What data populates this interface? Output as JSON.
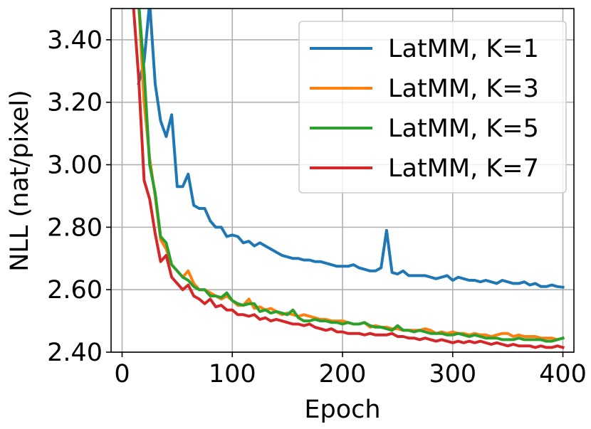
{
  "chart_data": {
    "type": "line",
    "title": "",
    "xlabel": "Epoch",
    "ylabel": "NLL (nat/pixel)",
    "xlim": [
      -10,
      410
    ],
    "ylim": [
      2.4,
      3.5
    ],
    "xticks": [
      0,
      100,
      200,
      300,
      400
    ],
    "xtick_labels": [
      "0",
      "100",
      "200",
      "300",
      "400"
    ],
    "yticks": [
      2.4,
      2.6,
      2.8,
      3.0,
      3.2,
      3.4
    ],
    "ytick_labels": [
      "2.40",
      "2.60",
      "2.80",
      "3.00",
      "3.20",
      "3.40"
    ],
    "grid": true,
    "legend_position": "top-right",
    "series": [
      {
        "name": "LatMM, K=1",
        "color": "#1f77b4",
        "x": [
          15,
          20,
          25,
          30,
          35,
          40,
          45,
          50,
          55,
          60,
          65,
          70,
          75,
          80,
          85,
          90,
          95,
          100,
          105,
          110,
          115,
          120,
          125,
          130,
          135,
          140,
          145,
          150,
          155,
          160,
          165,
          170,
          175,
          180,
          185,
          190,
          195,
          200,
          205,
          210,
          215,
          220,
          225,
          230,
          235,
          240,
          245,
          250,
          255,
          260,
          265,
          270,
          275,
          280,
          285,
          290,
          295,
          300,
          305,
          310,
          315,
          320,
          325,
          330,
          335,
          340,
          345,
          350,
          355,
          360,
          365,
          370,
          375,
          380,
          385,
          390,
          395,
          400
        ],
        "y": [
          3.26,
          3.33,
          3.52,
          3.26,
          3.14,
          3.09,
          3.16,
          2.93,
          2.93,
          2.97,
          2.87,
          2.86,
          2.86,
          2.82,
          2.8,
          2.8,
          2.77,
          2.775,
          2.77,
          2.75,
          2.755,
          2.74,
          2.75,
          2.74,
          2.73,
          2.72,
          2.71,
          2.705,
          2.7,
          2.7,
          2.695,
          2.695,
          2.69,
          2.69,
          2.685,
          2.68,
          2.675,
          2.675,
          2.675,
          2.68,
          2.67,
          2.665,
          2.66,
          2.66,
          2.67,
          2.79,
          2.655,
          2.65,
          2.66,
          2.645,
          2.645,
          2.645,
          2.645,
          2.64,
          2.635,
          2.64,
          2.645,
          2.63,
          2.64,
          2.635,
          2.63,
          2.63,
          2.625,
          2.63,
          2.625,
          2.62,
          2.63,
          2.625,
          2.62,
          2.62,
          2.625,
          2.615,
          2.62,
          2.61,
          2.61,
          2.615,
          2.61,
          2.608
        ]
      },
      {
        "name": "LatMM, K=3",
        "color": "#ff7f0e",
        "x": [
          15,
          20,
          25,
          30,
          35,
          40,
          45,
          50,
          55,
          60,
          65,
          70,
          75,
          80,
          85,
          90,
          95,
          100,
          105,
          110,
          115,
          120,
          125,
          130,
          135,
          140,
          145,
          150,
          155,
          160,
          165,
          170,
          175,
          180,
          185,
          190,
          195,
          200,
          205,
          210,
          215,
          220,
          225,
          230,
          235,
          240,
          245,
          250,
          255,
          260,
          265,
          270,
          275,
          280,
          285,
          290,
          295,
          300,
          305,
          310,
          315,
          320,
          325,
          330,
          335,
          340,
          345,
          350,
          355,
          360,
          365,
          370,
          375,
          380,
          385,
          390,
          395,
          400
        ],
        "y": [
          3.52,
          3.2,
          3.02,
          2.9,
          2.76,
          2.73,
          2.68,
          2.66,
          2.64,
          2.66,
          2.62,
          2.6,
          2.6,
          2.59,
          2.58,
          2.57,
          2.58,
          2.565,
          2.55,
          2.55,
          2.57,
          2.54,
          2.545,
          2.535,
          2.54,
          2.53,
          2.52,
          2.525,
          2.52,
          2.515,
          2.52,
          2.515,
          2.51,
          2.505,
          2.505,
          2.5,
          2.5,
          2.5,
          2.495,
          2.49,
          2.49,
          2.495,
          2.48,
          2.485,
          2.48,
          2.48,
          2.475,
          2.475,
          2.47,
          2.47,
          2.47,
          2.47,
          2.475,
          2.47,
          2.46,
          2.465,
          2.46,
          2.465,
          2.46,
          2.46,
          2.455,
          2.46,
          2.455,
          2.455,
          2.45,
          2.455,
          2.46,
          2.46,
          2.45,
          2.455,
          2.45,
          2.45,
          2.45,
          2.445,
          2.445,
          2.445,
          2.44,
          2.445
        ]
      },
      {
        "name": "LatMM, K=5",
        "color": "#2ca02c",
        "x": [
          15,
          20,
          25,
          30,
          35,
          40,
          45,
          50,
          55,
          60,
          65,
          70,
          75,
          80,
          85,
          90,
          95,
          100,
          105,
          110,
          115,
          120,
          125,
          130,
          135,
          140,
          145,
          150,
          155,
          160,
          165,
          170,
          175,
          180,
          185,
          190,
          195,
          200,
          205,
          210,
          215,
          220,
          225,
          230,
          235,
          240,
          245,
          250,
          255,
          260,
          265,
          270,
          275,
          280,
          285,
          290,
          295,
          300,
          305,
          310,
          315,
          320,
          325,
          330,
          335,
          340,
          345,
          350,
          355,
          360,
          365,
          370,
          375,
          380,
          385,
          390,
          395,
          400
        ],
        "y": [
          3.52,
          3.3,
          3.0,
          2.91,
          2.77,
          2.75,
          2.68,
          2.66,
          2.64,
          2.63,
          2.61,
          2.6,
          2.6,
          2.58,
          2.58,
          2.575,
          2.59,
          2.565,
          2.555,
          2.55,
          2.555,
          2.555,
          2.53,
          2.535,
          2.525,
          2.53,
          2.525,
          2.52,
          2.535,
          2.51,
          2.5,
          2.5,
          2.505,
          2.5,
          2.5,
          2.495,
          2.495,
          2.49,
          2.495,
          2.49,
          2.49,
          2.495,
          2.485,
          2.48,
          2.48,
          2.475,
          2.47,
          2.485,
          2.47,
          2.47,
          2.465,
          2.47,
          2.465,
          2.46,
          2.46,
          2.46,
          2.455,
          2.455,
          2.46,
          2.455,
          2.45,
          2.455,
          2.45,
          2.445,
          2.445,
          2.445,
          2.44,
          2.44,
          2.44,
          2.445,
          2.44,
          2.44,
          2.44,
          2.44,
          2.435,
          2.435,
          2.44,
          2.445
        ]
      },
      {
        "name": "LatMM, K=7",
        "color": "#d62728",
        "x": [
          10,
          15,
          20,
          25,
          30,
          35,
          40,
          45,
          50,
          55,
          60,
          65,
          70,
          75,
          80,
          85,
          90,
          95,
          100,
          105,
          110,
          115,
          120,
          125,
          130,
          135,
          140,
          145,
          150,
          155,
          160,
          165,
          170,
          175,
          180,
          185,
          190,
          195,
          200,
          205,
          210,
          215,
          220,
          225,
          230,
          235,
          240,
          245,
          250,
          255,
          260,
          265,
          270,
          275,
          280,
          285,
          290,
          295,
          300,
          305,
          310,
          315,
          320,
          325,
          330,
          335,
          340,
          345,
          350,
          355,
          360,
          365,
          370,
          375,
          380,
          385,
          390,
          395,
          400
        ],
        "y": [
          3.52,
          3.28,
          2.95,
          2.89,
          2.78,
          2.69,
          2.71,
          2.64,
          2.62,
          2.6,
          2.615,
          2.58,
          2.57,
          2.555,
          2.57,
          2.545,
          2.55,
          2.535,
          2.535,
          2.52,
          2.52,
          2.515,
          2.52,
          2.505,
          2.51,
          2.5,
          2.505,
          2.5,
          2.495,
          2.49,
          2.49,
          2.485,
          2.49,
          2.48,
          2.475,
          2.47,
          2.475,
          2.465,
          2.465,
          2.46,
          2.46,
          2.46,
          2.455,
          2.46,
          2.455,
          2.455,
          2.455,
          2.46,
          2.45,
          2.45,
          2.445,
          2.445,
          2.44,
          2.445,
          2.44,
          2.435,
          2.44,
          2.435,
          2.43,
          2.435,
          2.43,
          2.435,
          2.43,
          2.435,
          2.43,
          2.425,
          2.43,
          2.425,
          2.42,
          2.425,
          2.42,
          2.42,
          2.42,
          2.415,
          2.42,
          2.415,
          2.415,
          2.42,
          2.415
        ]
      }
    ]
  }
}
